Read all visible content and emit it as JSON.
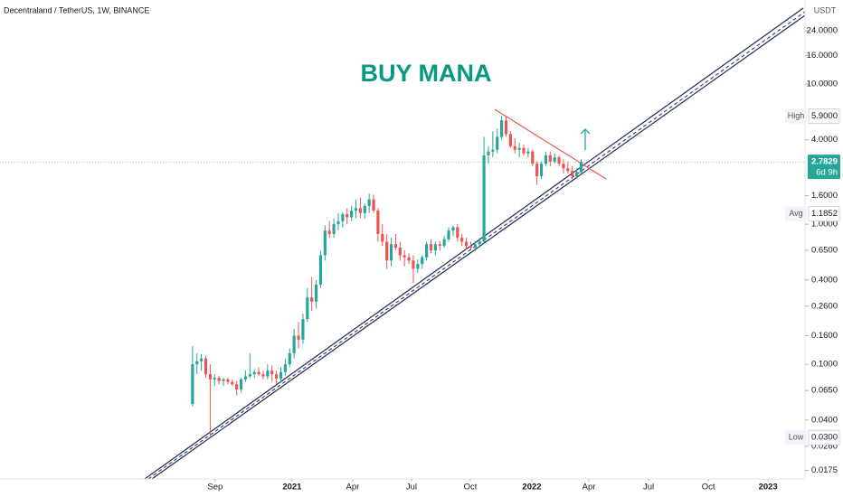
{
  "chart_data": {
    "type": "candlestick",
    "title": "Decentraland / TetherUS, 1W, BINANCE",
    "annotation": "BUY MANA",
    "currency": "USDT",
    "log_scale": true,
    "grid": false,
    "up_color": "#26a69a",
    "down_color": "#ef5350",
    "xlim": [
      -43.6,
      138.7
    ],
    "xticks": [
      {
        "value": 5.12,
        "label": "Sep"
      },
      {
        "value": 22.54,
        "label": "2021"
      },
      {
        "value": 36.27,
        "label": "Apr"
      },
      {
        "value": 49.59,
        "label": "Jul"
      },
      {
        "value": 62.91,
        "label": "Oct"
      },
      {
        "value": 76.84,
        "label": "2022"
      },
      {
        "value": 89.75,
        "label": "Apr"
      },
      {
        "value": 103.28,
        "label": "Jul"
      },
      {
        "value": 116.8,
        "label": "Oct"
      },
      {
        "value": 130.33,
        "label": "2023"
      }
    ],
    "ylim": [
      0.0152,
      39.8
    ],
    "yticks": [
      {
        "value": 24,
        "label": "24.0000"
      },
      {
        "value": 16,
        "label": "16.0000"
      },
      {
        "value": 10,
        "label": "10.0000"
      },
      {
        "value": 4,
        "label": "4.0000"
      },
      {
        "value": 1.6,
        "label": "1.6000"
      },
      {
        "value": 1,
        "label": "1.0000"
      },
      {
        "value": 0.65,
        "label": "0.6500"
      },
      {
        "value": 0.4,
        "label": "0.4000"
      },
      {
        "value": 0.26,
        "label": "0.2600"
      },
      {
        "value": 0.16,
        "label": "0.1600"
      },
      {
        "value": 0.1,
        "label": "0.1000"
      },
      {
        "value": 0.065,
        "label": "0.0650"
      },
      {
        "value": 0.04,
        "label": "0.0400"
      },
      {
        "value": 0.026,
        "label": "0.0260"
      },
      {
        "value": 0.0175,
        "label": "0.0175"
      }
    ],
    "price_labels": [
      {
        "label": "High",
        "price": {
          "value": 5.9,
          "label": "5.9000"
        }
      },
      {
        "label": "Avg",
        "price": 1.1852
      },
      {
        "label": "Low",
        "price": {
          "value": 0.03,
          "label": "0.0300"
        }
      }
    ],
    "current_price": 2.7829,
    "countdown": "6d 9h",
    "x": [
      0,
      1,
      2,
      3,
      4,
      5,
      6,
      7,
      8,
      9,
      10,
      11,
      12,
      13,
      14,
      15,
      16,
      17,
      18,
      19,
      20,
      21,
      22,
      23,
      24,
      25,
      26,
      27,
      28,
      29,
      30,
      31,
      32,
      33,
      34,
      35,
      36,
      37,
      38,
      39,
      40,
      41,
      42,
      43,
      44,
      45,
      46,
      47,
      48,
      49,
      50,
      51,
      52,
      53,
      54,
      55,
      56,
      57,
      58,
      59,
      60,
      61,
      62,
      63,
      64,
      65,
      66,
      67,
      68,
      69,
      70,
      71,
      72,
      73,
      74,
      75,
      76,
      77,
      78,
      79,
      80,
      81,
      82,
      83,
      84,
      85,
      86,
      87,
      88
    ],
    "open": [
      0.052,
      0.1,
      0.105,
      0.11,
      0.085,
      0.078,
      0.08,
      0.076,
      0.078,
      0.075,
      0.072,
      0.066,
      0.078,
      0.082,
      0.085,
      0.088,
      0.085,
      0.082,
      0.09,
      0.085,
      0.079,
      0.088,
      0.1,
      0.12,
      0.16,
      0.15,
      0.21,
      0.3,
      0.28,
      0.37,
      0.6,
      0.9,
      0.85,
      1.0,
      1.05,
      1.18,
      1.12,
      1.25,
      1.3,
      1.2,
      1.35,
      1.5,
      1.25,
      0.85,
      0.75,
      0.55,
      0.72,
      0.68,
      0.6,
      0.58,
      0.55,
      0.48,
      0.52,
      0.58,
      0.72,
      0.65,
      0.72,
      0.7,
      0.78,
      0.9,
      0.95,
      0.8,
      0.75,
      0.7,
      0.68,
      0.72,
      0.75,
      3.1,
      3.3,
      3.4,
      4.2,
      5.5,
      4.4,
      3.6,
      3.4,
      3.5,
      3.2,
      3.3,
      2.7,
      2.2,
      2.7,
      3.1,
      2.8,
      3.0,
      2.7,
      2.5,
      2.4,
      2.2,
      2.35
    ],
    "high": [
      0.135,
      0.12,
      0.118,
      0.115,
      0.1,
      0.085,
      0.083,
      0.08,
      0.08,
      0.078,
      0.076,
      0.08,
      0.09,
      0.12,
      0.092,
      0.095,
      0.09,
      0.1,
      0.098,
      0.09,
      0.095,
      0.11,
      0.13,
      0.18,
      0.2,
      0.23,
      0.35,
      0.42,
      0.4,
      0.65,
      0.98,
      1.05,
      1.1,
      1.2,
      1.22,
      1.3,
      1.35,
      1.5,
      1.55,
      1.4,
      1.65,
      1.62,
      1.3,
      1.0,
      0.85,
      0.8,
      0.85,
      0.75,
      0.65,
      0.62,
      0.6,
      0.56,
      0.6,
      0.75,
      0.78,
      0.75,
      0.76,
      0.82,
      0.95,
      0.98,
      1.0,
      0.85,
      0.8,
      0.75,
      0.76,
      0.8,
      4.2,
      3.6,
      4.6,
      4.8,
      5.9,
      5.9,
      4.6,
      4.1,
      3.8,
      3.7,
      3.5,
      3.4,
      2.8,
      2.8,
      3.3,
      3.3,
      3.2,
      3.1,
      2.9,
      2.8,
      2.6,
      2.5,
      2.9
    ],
    "low": [
      0.05,
      0.085,
      0.09,
      0.08,
      0.03,
      0.07,
      0.072,
      0.07,
      0.072,
      0.07,
      0.06,
      0.063,
      0.075,
      0.08,
      0.08,
      0.083,
      0.078,
      0.078,
      0.075,
      0.072,
      0.075,
      0.083,
      0.095,
      0.11,
      0.13,
      0.14,
      0.2,
      0.24,
      0.25,
      0.35,
      0.55,
      0.8,
      0.8,
      0.9,
      0.95,
      1.0,
      1.05,
      1.1,
      1.1,
      1.1,
      1.2,
      1.2,
      0.75,
      0.7,
      0.48,
      0.5,
      0.65,
      0.55,
      0.5,
      0.52,
      0.38,
      0.45,
      0.48,
      0.55,
      0.62,
      0.6,
      0.65,
      0.68,
      0.75,
      0.82,
      0.75,
      0.7,
      0.66,
      0.65,
      0.64,
      0.68,
      0.73,
      2.7,
      3.0,
      3.2,
      4.0,
      4.2,
      3.5,
      3.2,
      3.0,
      3.1,
      3.0,
      2.6,
      1.9,
      2.1,
      2.6,
      2.6,
      2.7,
      2.6,
      2.3,
      2.3,
      2.1,
      2.1,
      2.3
    ],
    "close": [
      0.1,
      0.105,
      0.11,
      0.085,
      0.078,
      0.08,
      0.076,
      0.078,
      0.075,
      0.072,
      0.066,
      0.078,
      0.082,
      0.085,
      0.088,
      0.085,
      0.082,
      0.09,
      0.085,
      0.079,
      0.088,
      0.1,
      0.12,
      0.16,
      0.15,
      0.21,
      0.3,
      0.28,
      0.37,
      0.6,
      0.9,
      0.85,
      1.0,
      1.05,
      1.18,
      1.12,
      1.25,
      1.3,
      1.2,
      1.35,
      1.5,
      1.25,
      0.85,
      0.75,
      0.55,
      0.72,
      0.68,
      0.6,
      0.58,
      0.55,
      0.48,
      0.52,
      0.58,
      0.72,
      0.65,
      0.72,
      0.7,
      0.78,
      0.9,
      0.95,
      0.8,
      0.75,
      0.7,
      0.68,
      0.72,
      0.75,
      3.1,
      3.3,
      3.4,
      4.2,
      5.5,
      4.4,
      3.6,
      3.4,
      3.5,
      3.2,
      3.3,
      2.7,
      2.2,
      2.7,
      3.1,
      2.8,
      3.0,
      2.7,
      2.5,
      2.4,
      2.2,
      2.35,
      2.7829
    ]
  }
}
